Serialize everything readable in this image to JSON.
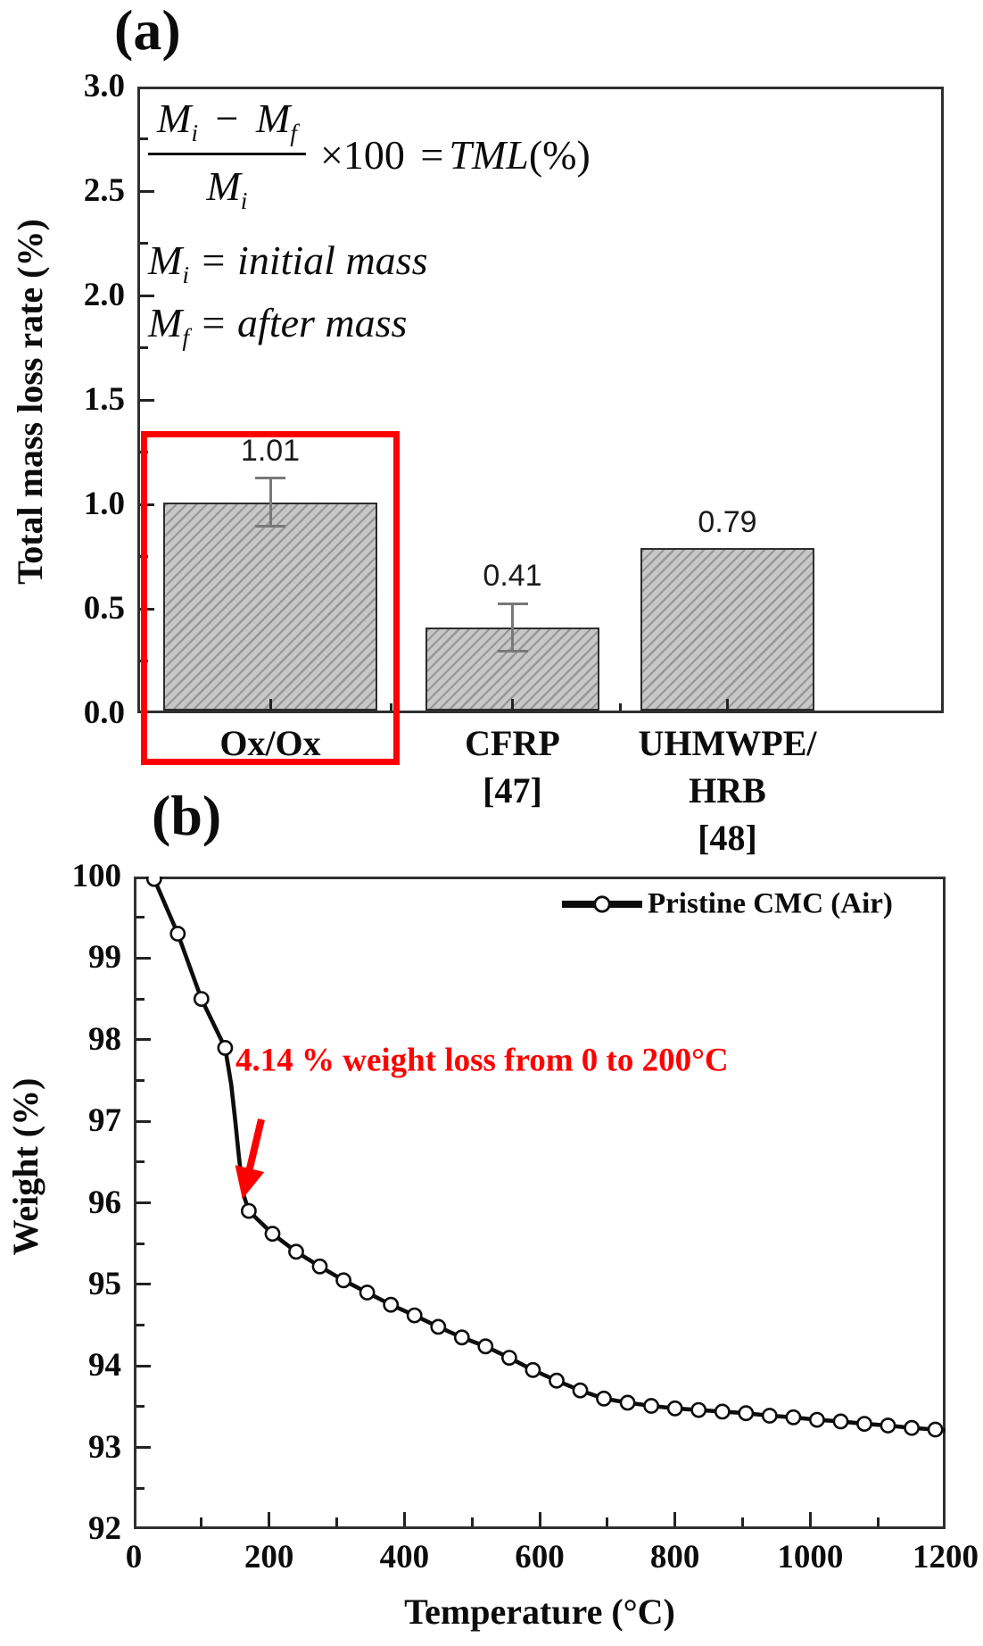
{
  "colors": {
    "red": "#fe0000",
    "bar_fill": "#c7c7c7",
    "bar_hatch": "#969696",
    "axis": "#2f2f2f",
    "error_bar": "#787878",
    "line_series": "#0d0d0d"
  },
  "panel_a": {
    "label": "(a)",
    "ylabel": "Total mass loss rate (%)",
    "formula": {
      "M": "M",
      "sub_i": "i",
      "sub_f": "f",
      "minus": "−",
      "times100": "×100",
      "eq": "=",
      "result": "TML",
      "result_unit": "(%)",
      "initial": "= initial mass",
      "after": "= after mass"
    }
  },
  "panel_b": {
    "label": "(b)",
    "ylabel": "Weight (%)",
    "xlabel": "Temperature (°C)",
    "legend": "Pristine CMC (Air)",
    "annotation": "4.14 % weight loss from 0 to 200°C"
  },
  "chart_data": [
    {
      "type": "bar",
      "panel": "(a)",
      "title": "",
      "xlabel": "",
      "ylabel": "Total mass loss rate (%)",
      "ylim": [
        0.0,
        3.0
      ],
      "yticks": [
        0.0,
        0.5,
        1.0,
        1.5,
        2.0,
        2.5,
        3.0
      ],
      "ytick_minor_step": 0.25,
      "categories": [
        [
          "Ox/Ox"
        ],
        [
          "CFRP",
          "[47]"
        ],
        [
          "UHMWPE/",
          "HRB",
          "[48]"
        ]
      ],
      "values": [
        1.01,
        0.41,
        0.79
      ],
      "value_labels": [
        "1.01",
        "0.41",
        "0.79"
      ],
      "errors": [
        0.115,
        0.115,
        0
      ],
      "highlighted_category": "Ox/Ox",
      "grid": false,
      "annotations": [
        "(Mi − Mf)/Mi ×100 = TML(%)",
        "Mi = initial mass",
        "Mf = after mass"
      ]
    },
    {
      "type": "line",
      "panel": "(b)",
      "title": "",
      "xlabel": "Temperature (°C)",
      "ylabel": "Weight (%)",
      "xlim": [
        0,
        1200
      ],
      "ylim": [
        92,
        100
      ],
      "xticks": [
        0,
        200,
        400,
        600,
        800,
        1000,
        1200
      ],
      "xtick_minor_step": 100,
      "yticks": [
        92,
        93,
        94,
        95,
        96,
        97,
        98,
        99,
        100
      ],
      "ytick_minor_step": 0.5,
      "grid": false,
      "legend_position": "top-right",
      "annotation": {
        "text": "4.14 % weight loss from 0 to 200°C",
        "arrow_to": [
          170,
          95.9
        ]
      },
      "series": [
        {
          "name": "Pristine CMC (Air)",
          "marker": "open-circle",
          "points": [
            [
              30,
              99.97,
              1
            ],
            [
              65,
              99.3,
              1
            ],
            [
              100,
              98.5,
              1
            ],
            [
              135,
              97.9,
              1
            ],
            [
              144,
              97.45,
              0
            ],
            [
              150,
              97.0,
              0
            ],
            [
              155,
              96.6,
              0
            ],
            [
              159,
              96.3,
              0
            ],
            [
              163,
              96.08,
              0
            ],
            [
              170,
              95.9,
              1
            ],
            [
              205,
              95.62,
              1
            ],
            [
              240,
              95.4,
              1
            ],
            [
              275,
              95.22,
              1
            ],
            [
              310,
              95.05,
              1
            ],
            [
              345,
              94.9,
              1
            ],
            [
              380,
              94.75,
              1
            ],
            [
              415,
              94.62,
              1
            ],
            [
              450,
              94.48,
              1
            ],
            [
              485,
              94.35,
              1
            ],
            [
              520,
              94.24,
              1
            ],
            [
              555,
              94.1,
              1
            ],
            [
              590,
              93.95,
              1
            ],
            [
              625,
              93.82,
              1
            ],
            [
              660,
              93.7,
              1
            ],
            [
              695,
              93.6,
              1
            ],
            [
              730,
              93.55,
              1
            ],
            [
              765,
              93.51,
              1
            ],
            [
              800,
              93.48,
              1
            ],
            [
              835,
              93.46,
              1
            ],
            [
              870,
              93.44,
              1
            ],
            [
              905,
              93.42,
              1
            ],
            [
              940,
              93.39,
              1
            ],
            [
              975,
              93.37,
              1
            ],
            [
              1010,
              93.34,
              1
            ],
            [
              1045,
              93.32,
              1
            ],
            [
              1080,
              93.29,
              1
            ],
            [
              1115,
              93.27,
              1
            ],
            [
              1150,
              93.24,
              1
            ],
            [
              1185,
              93.22,
              1
            ],
            [
              1200,
              93.21,
              0
            ]
          ]
        }
      ]
    }
  ]
}
